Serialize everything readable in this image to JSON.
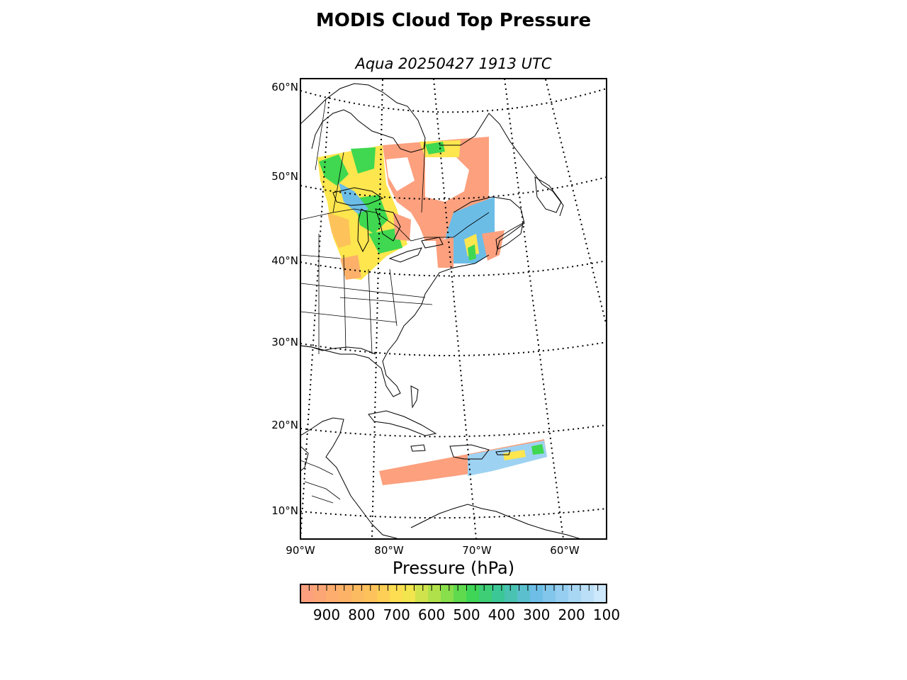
{
  "title": "MODIS Cloud Top Pressure",
  "subtitle": "Aqua 20250427 1913 UTC",
  "map": {
    "lat_labels": [
      "60°N",
      "50°N",
      "40°N",
      "30°N",
      "20°N",
      "10°N"
    ],
    "lon_labels": [
      "90°W",
      "80°W",
      "70°W",
      "60°W"
    ],
    "graticule_style": "dotted",
    "coastline_color": "#000000",
    "background_color": "#ffffff"
  },
  "colorbar": {
    "title": "Pressure (hPa)",
    "tick_labels": [
      "900",
      "800",
      "700",
      "600",
      "500",
      "400",
      "300",
      "200",
      "100"
    ],
    "range_hpa": [
      975,
      100
    ],
    "colors": [
      "#fca07e",
      "#fdb06a",
      "#fdc35a",
      "#fde64e",
      "#a9e04a",
      "#3fd850",
      "#3cc4a0",
      "#6cbde6",
      "#9ed2f2",
      "#cde7fb"
    ]
  },
  "data_regions": {
    "low_cloud_color": "#fca07e",
    "mid_cloud_color": "#fde64e",
    "green_cloud_color": "#3fd850",
    "high_cloud_color": "#6cbde6"
  }
}
